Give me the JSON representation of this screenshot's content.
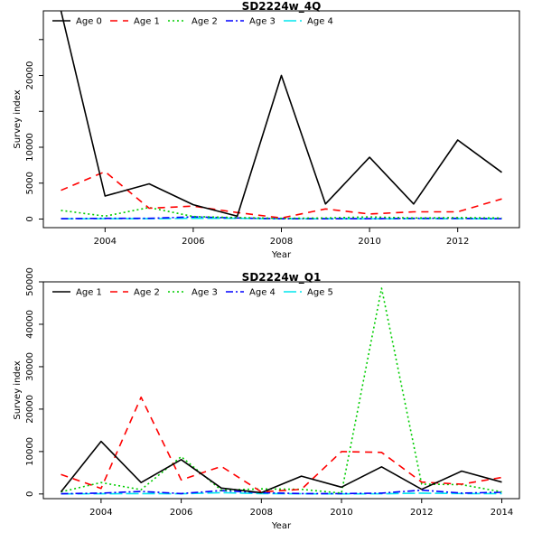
{
  "chart_data": [
    {
      "type": "line",
      "title": "SD2224w_4Q",
      "xlabel": "Year",
      "ylabel": "Survey index",
      "xlim": [
        2002.6,
        2013.4
      ],
      "ylim": [
        -1200,
        29000
      ],
      "x_ticks": [
        2004,
        2006,
        2008,
        2010,
        2012
      ],
      "x_tick_labels": [
        "2004",
        "2006",
        "2008",
        "2010",
        "2012"
      ],
      "y_ticks": [
        0,
        5000,
        10000,
        15000,
        20000,
        25000
      ],
      "y_tick_labels": [
        "0",
        "5000",
        "10000",
        "",
        "20000",
        ""
      ],
      "legend": "top",
      "grid": false,
      "x": [
        2003,
        2004,
        2005,
        2006,
        2007,
        2008,
        2009,
        2010,
        2011,
        2012,
        2013
      ],
      "series": [
        {
          "name": "Age 0",
          "color": "#000000",
          "dash": "",
          "values": [
            29000,
            3200,
            4900,
            2000,
            400,
            20000,
            2100,
            8600,
            2100,
            11000,
            6500
          ]
        },
        {
          "name": "Age 1",
          "color": "#ff0000",
          "dash": "8,6",
          "values": [
            4000,
            6600,
            1500,
            1800,
            900,
            150,
            1400,
            700,
            1000,
            1000,
            2800
          ]
        },
        {
          "name": "Age 2",
          "color": "#00cd00",
          "dash": "2,3",
          "values": [
            1200,
            400,
            1600,
            350,
            200,
            100,
            150,
            300,
            150,
            200,
            150
          ]
        },
        {
          "name": "Age 3",
          "color": "#0000ff",
          "dash": "8,3,2,3",
          "values": [
            50,
            100,
            100,
            300,
            150,
            50,
            50,
            50,
            100,
            100,
            50
          ]
        },
        {
          "name": "Age 4",
          "color": "#00e5ee",
          "dash": "14,4",
          "values": [
            30,
            50,
            50,
            100,
            100,
            30,
            30,
            30,
            50,
            50,
            30
          ]
        }
      ]
    },
    {
      "type": "line",
      "title": "SD2224w_Q1",
      "xlabel": "Year",
      "ylabel": "Survey index",
      "xlim": [
        2002.56,
        2014.44
      ],
      "ylim": [
        -1100,
        50000
      ],
      "x_ticks": [
        2004,
        2006,
        2008,
        2010,
        2012,
        2014
      ],
      "x_tick_labels": [
        "2004",
        "2006",
        "2008",
        "2010",
        "2012",
        "2014"
      ],
      "y_ticks": [
        0,
        10000,
        20000,
        30000,
        40000,
        50000
      ],
      "y_tick_labels": [
        "0",
        "10000",
        "20000",
        "30000",
        "40000",
        "50000"
      ],
      "legend": "top",
      "grid": false,
      "x": [
        2003,
        2004,
        2005,
        2006,
        2007,
        2008,
        2009,
        2010,
        2011,
        2012,
        2013,
        2014
      ],
      "series": [
        {
          "name": "Age 1",
          "color": "#000000",
          "dash": "",
          "values": [
            500,
            12400,
            2700,
            8100,
            1400,
            300,
            4200,
            1600,
            6400,
            1100,
            5400,
            2800
          ]
        },
        {
          "name": "Age 2",
          "color": "#ff0000",
          "dash": "8,6",
          "values": [
            4600,
            1300,
            22800,
            3300,
            6500,
            500,
            1100,
            10000,
            9800,
            2800,
            2300,
            3900
          ]
        },
        {
          "name": "Age 3",
          "color": "#00cd00",
          "dash": "2,3",
          "values": [
            500,
            2700,
            1000,
            8800,
            900,
            1200,
            1100,
            200,
            48500,
            2300,
            2200,
            500
          ]
        },
        {
          "name": "Age 4",
          "color": "#0000ff",
          "dash": "8,3,2,3",
          "values": [
            50,
            200,
            600,
            100,
            800,
            300,
            100,
            100,
            200,
            900,
            200,
            400
          ]
        },
        {
          "name": "Age 5",
          "color": "#00e5ee",
          "dash": "14,4",
          "values": [
            20,
            50,
            100,
            50,
            300,
            100,
            50,
            30,
            50,
            200,
            100,
            100
          ]
        }
      ]
    }
  ]
}
